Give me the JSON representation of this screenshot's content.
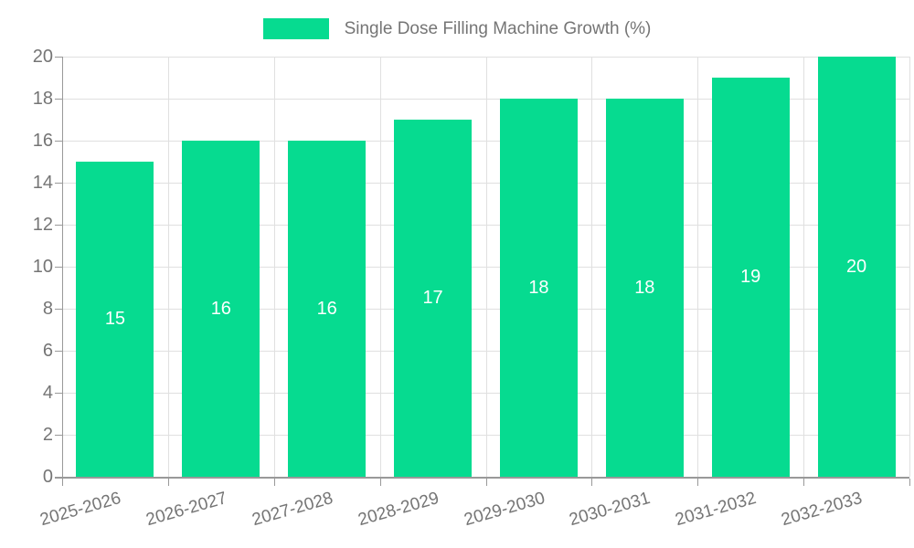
{
  "chart_data": {
    "type": "bar",
    "title": "",
    "legend_label": "Single Dose Filling Machine Growth (%)",
    "legend_position": "top-center",
    "categories": [
      "2025-2026",
      "2026-2027",
      "2027-2028",
      "2028-2029",
      "2029-2030",
      "2030-2031",
      "2031-2032",
      "2032-2033"
    ],
    "values": [
      15,
      16,
      16,
      17,
      18,
      18,
      19,
      20
    ],
    "value_labels": [
      "15",
      "16",
      "16",
      "17",
      "18",
      "18",
      "19",
      "20"
    ],
    "xlabel": "",
    "ylabel": "",
    "ylim": [
      0,
      20
    ],
    "ytick_step": 2,
    "yticks": [
      0,
      2,
      4,
      6,
      8,
      10,
      12,
      14,
      16,
      18,
      20
    ],
    "grid": true,
    "x_label_rotation_deg": -16,
    "colors": {
      "bar": "#06db90",
      "grid": "#e0e0e0",
      "axis": "#999999",
      "axis_text": "#757575",
      "value_label": "#ffffff",
      "background": "#ffffff"
    }
  }
}
